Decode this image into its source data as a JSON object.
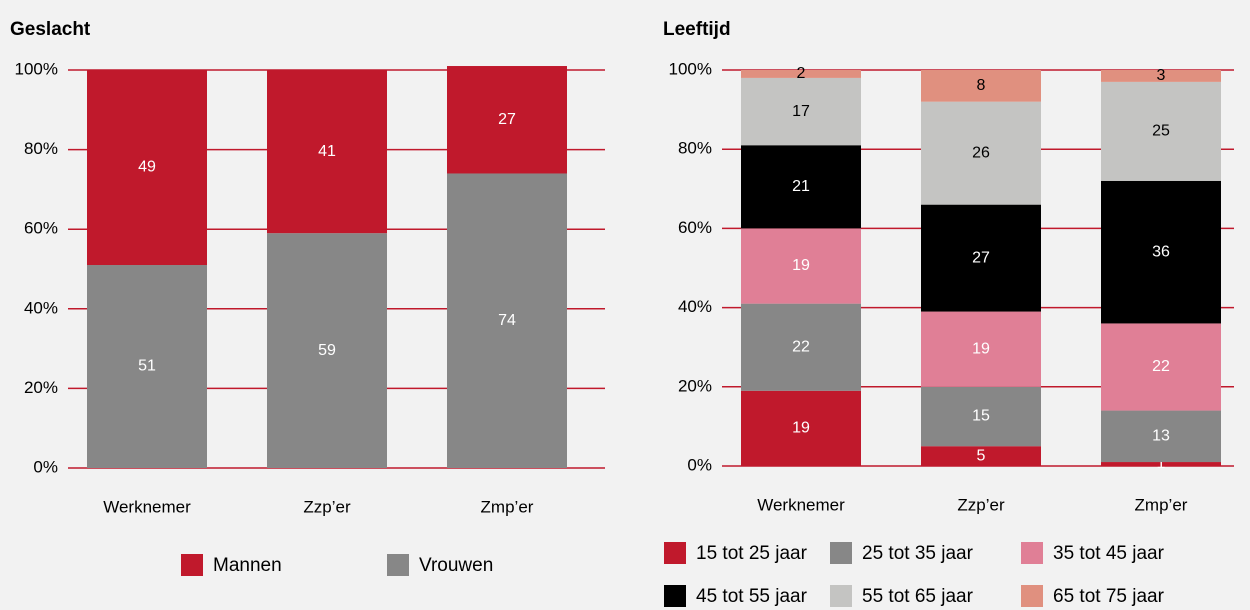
{
  "chart_data": [
    {
      "type": "bar",
      "stacked": true,
      "title": "Geslacht",
      "categories": [
        "Werknemer",
        "Zzp’er",
        "Zmp’er"
      ],
      "series": [
        {
          "name": "Vrouwen",
          "color": "#878787",
          "label_color": "#ffffff",
          "values": [
            51,
            59,
            74
          ]
        },
        {
          "name": "Mannen",
          "color": "#c0192c",
          "label_color": "#ffffff",
          "values": [
            49,
            41,
            27
          ]
        }
      ],
      "legend_order": [
        1,
        0
      ],
      "ylim": [
        0,
        100
      ],
      "yticks": [
        {
          "value": 0,
          "label": "0%"
        },
        {
          "value": 20,
          "label": "20%"
        },
        {
          "value": 40,
          "label": "40%"
        },
        {
          "value": 60,
          "label": "60%"
        },
        {
          "value": 80,
          "label": "80%"
        },
        {
          "value": 100,
          "label": "100%"
        }
      ],
      "grid": true,
      "grid_color": "#c0192c"
    },
    {
      "type": "bar",
      "stacked": true,
      "title": "Leeftijd",
      "categories": [
        "Werknemer",
        "Zzp’er",
        "Zmp’er"
      ],
      "series": [
        {
          "name": "15 tot 25 jaar",
          "color": "#c0192c",
          "label_color": "#ffffff",
          "values": [
            19,
            5,
            1
          ]
        },
        {
          "name": "25 tot 35 jaar",
          "color": "#878787",
          "label_color": "#ffffff",
          "values": [
            22,
            15,
            13
          ]
        },
        {
          "name": "35 tot 45 jaar",
          "color": "#e07f96",
          "label_color": "#ffffff",
          "values": [
            19,
            19,
            22
          ]
        },
        {
          "name": "45 tot 55 jaar",
          "color": "#000000",
          "label_color": "#ffffff",
          "values": [
            21,
            27,
            36
          ]
        },
        {
          "name": "55 tot 65 jaar",
          "color": "#c4c4c2",
          "label_color": "#000000",
          "values": [
            17,
            26,
            25
          ]
        },
        {
          "name": "65 tot 75 jaar",
          "color": "#e0907f",
          "label_color": "#000000",
          "values": [
            2,
            8,
            3
          ]
        }
      ],
      "legend_order": [
        0,
        1,
        2,
        3,
        4,
        5
      ],
      "ylim": [
        0,
        100
      ],
      "yticks": [
        {
          "value": 0,
          "label": "0%"
        },
        {
          "value": 20,
          "label": "20%"
        },
        {
          "value": 40,
          "label": "40%"
        },
        {
          "value": 60,
          "label": "60%"
        },
        {
          "value": 80,
          "label": "80%"
        },
        {
          "value": 100,
          "label": "100%"
        }
      ],
      "grid": true,
      "grid_color": "#c0192c"
    }
  ]
}
